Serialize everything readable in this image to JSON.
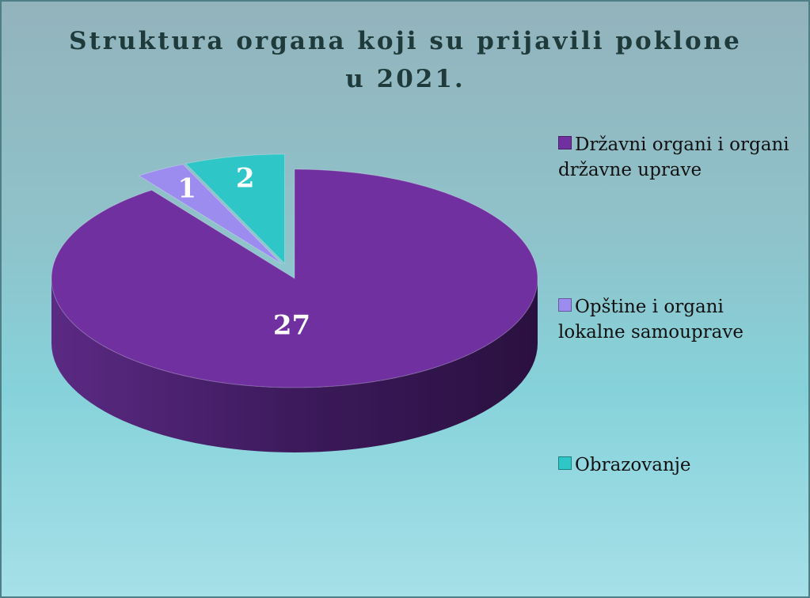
{
  "chart_data": {
    "type": "pie",
    "title": "Struktura organa koji su prijavili poklone u 2021.",
    "categories": [
      "Državni organi i organi državne uprave",
      "Opštine i organi lokalne samouprave",
      "Obrazovanje"
    ],
    "values": [
      27,
      1,
      2
    ],
    "colors": [
      "#7030a0",
      "#9c8cf0",
      "#2ec6c6"
    ],
    "legend": "right"
  }
}
